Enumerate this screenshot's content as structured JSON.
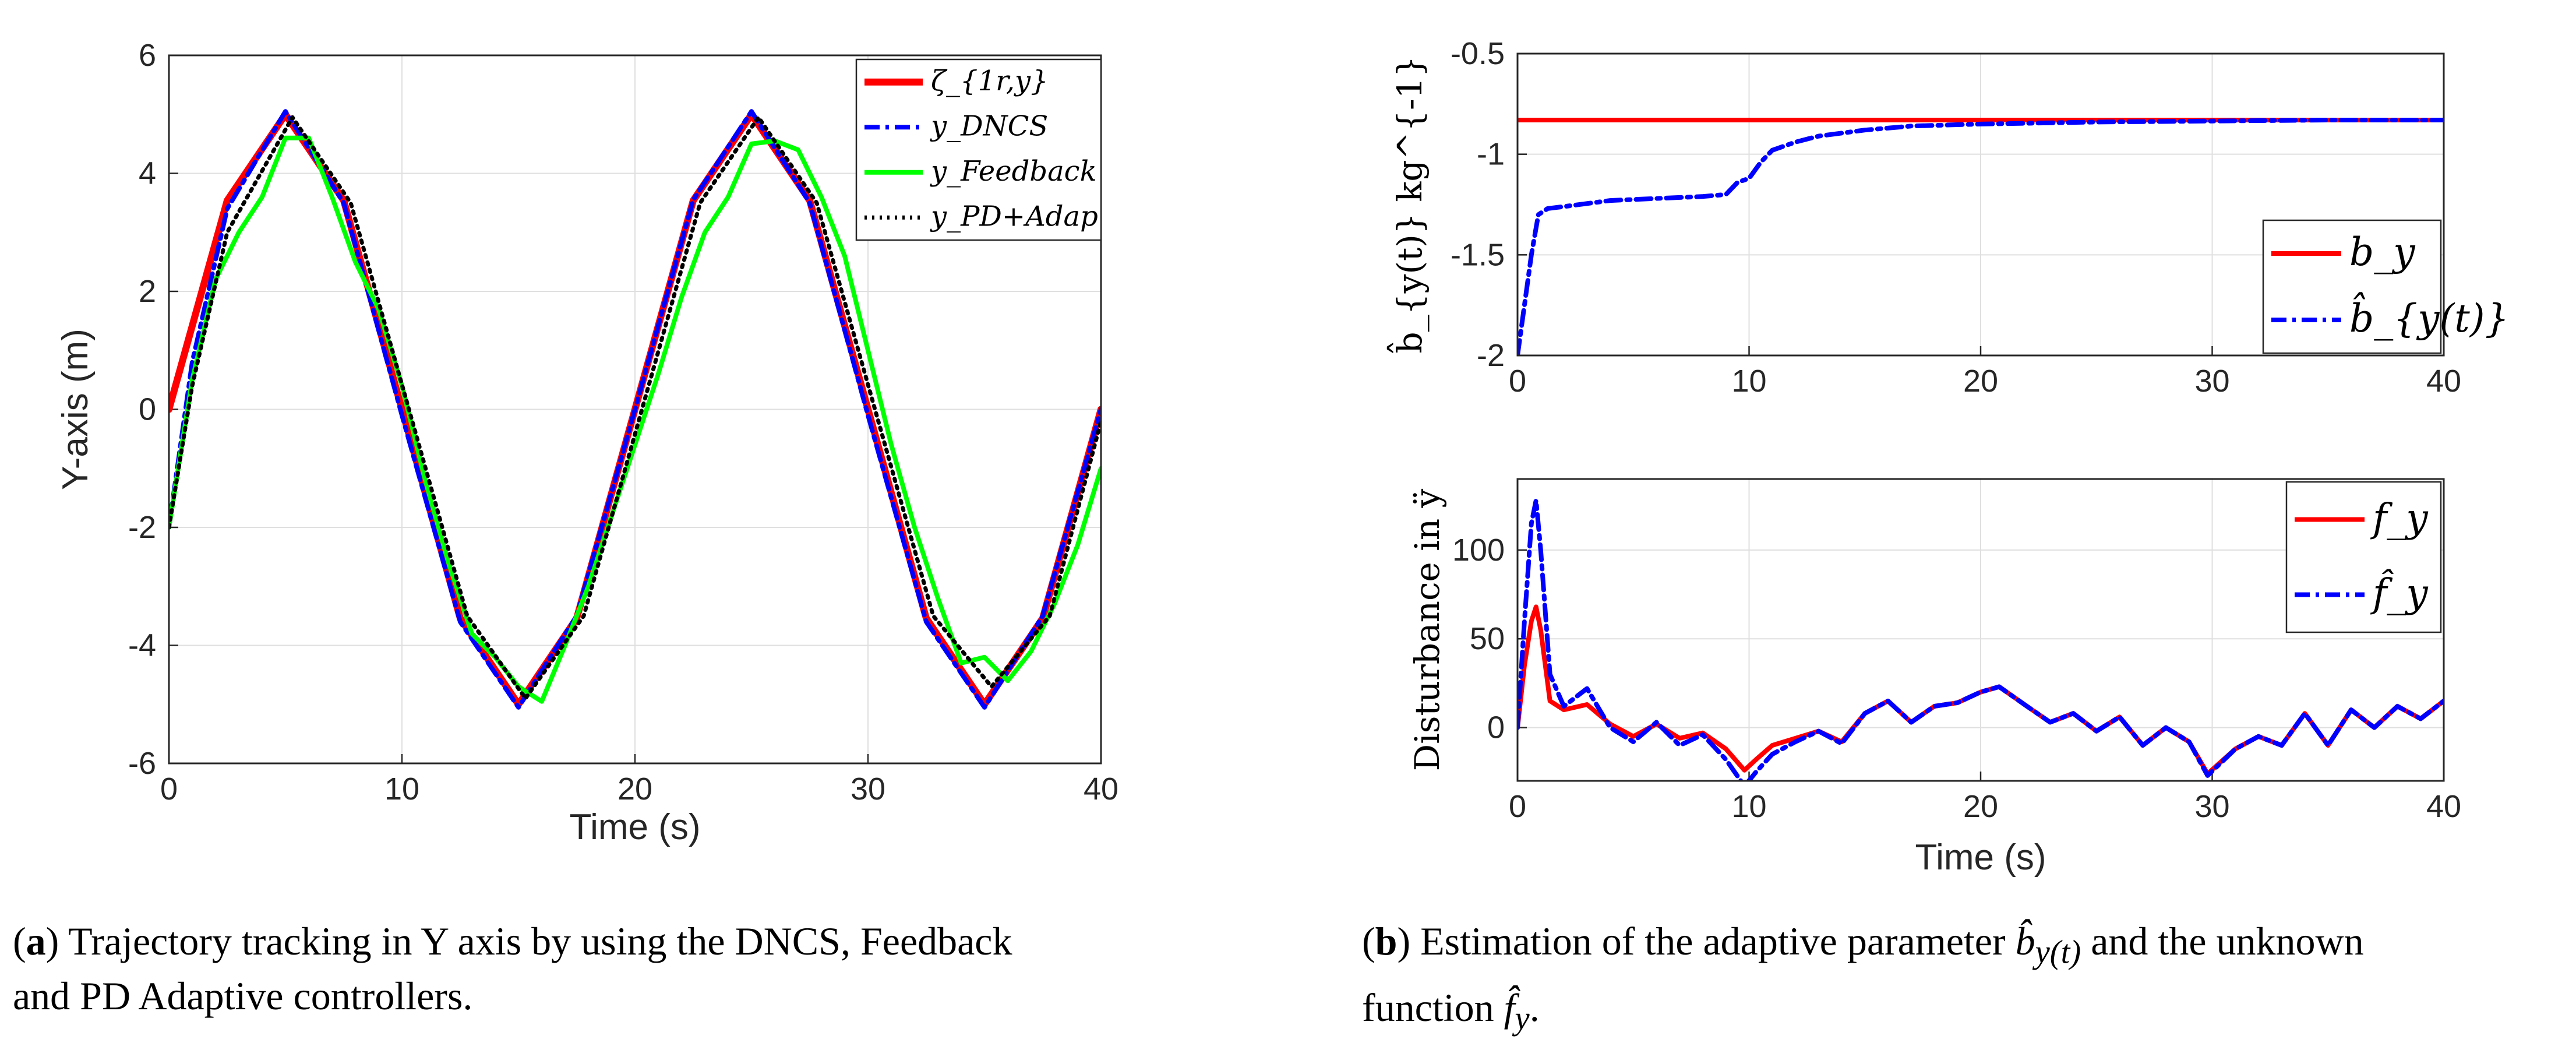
{
  "chart_data": [
    {
      "type": "line",
      "panel": "a",
      "xlabel": "Time (s)",
      "ylabel": "Y-axis (m)",
      "xlim": [
        0,
        40
      ],
      "ylim": [
        -6,
        6
      ],
      "xticks": [
        "0",
        "10",
        "20",
        "30",
        "40"
      ],
      "yticks": [
        "-6",
        "-4",
        "-2",
        "0",
        "2",
        "4",
        "6"
      ],
      "grid": true,
      "legend_position": "top-right",
      "series": [
        {
          "name": "ζ_{1r,y}",
          "color": "#ff0000",
          "style": "solid-thick",
          "x": [
            0,
            2.5,
            5,
            7.5,
            10,
            12.5,
            15,
            17.5,
            20,
            22.5,
            25,
            27.5,
            30,
            32.5,
            35,
            37.5,
            40
          ],
          "y": [
            0,
            3.54,
            5,
            3.54,
            0,
            -3.54,
            -5,
            -3.54,
            0,
            3.54,
            5,
            3.54,
            0,
            -3.54,
            -5,
            -3.54,
            0
          ]
        },
        {
          "name": "y_DNCS",
          "color": "#0000ff",
          "style": "dashdot",
          "x": [
            0,
            1,
            2.5,
            5,
            7.5,
            10,
            12.5,
            15,
            17.5,
            20,
            22.5,
            25,
            27.5,
            30,
            32.5,
            35,
            37.5,
            40
          ],
          "y": [
            -2,
            0.8,
            3.4,
            5.05,
            3.5,
            -0.1,
            -3.6,
            -5.05,
            -3.5,
            0,
            3.55,
            5.05,
            3.5,
            -0.1,
            -3.6,
            -5.05,
            -3.5,
            0
          ]
        },
        {
          "name": "y_Feedback",
          "color": "#00ff00",
          "style": "solid",
          "x": [
            0,
            1,
            2,
            3,
            4,
            5,
            6,
            7,
            8,
            9,
            10,
            11,
            12,
            13,
            14,
            15,
            16,
            17,
            18,
            19,
            20,
            21,
            22,
            23,
            24,
            25,
            26,
            27,
            28,
            29,
            30,
            31,
            32,
            33,
            34,
            35,
            36,
            37,
            38,
            39,
            40
          ],
          "y": [
            -2,
            0.5,
            2.2,
            3.0,
            3.6,
            4.6,
            4.6,
            3.6,
            2.5,
            1.7,
            0.4,
            -1.2,
            -2.6,
            -3.8,
            -4.2,
            -4.7,
            -4.95,
            -4.0,
            -3.0,
            -1.8,
            -0.6,
            0.6,
            1.9,
            3.0,
            3.6,
            4.5,
            4.55,
            4.4,
            3.6,
            2.6,
            1.0,
            -0.6,
            -2.0,
            -3.2,
            -4.3,
            -4.2,
            -4.6,
            -4.1,
            -3.3,
            -2.3,
            -1.0
          ]
        },
        {
          "name": "y_PD+Adap",
          "color": "#000000",
          "style": "dotted",
          "x": [
            0,
            1,
            2.5,
            5.3,
            7.8,
            10.3,
            12.8,
            15.3,
            17.8,
            20.3,
            22.8,
            25.3,
            27.8,
            30.3,
            32.8,
            35.3,
            37.8,
            40
          ],
          "y": [
            -2,
            0.4,
            3.0,
            4.95,
            3.5,
            0,
            -3.5,
            -4.9,
            -3.5,
            0,
            3.5,
            4.95,
            3.5,
            0,
            -3.5,
            -4.7,
            -3.5,
            -0.2
          ]
        }
      ]
    },
    {
      "type": "line",
      "panel": "b-top",
      "xlabel": "",
      "ylabel": "b̂_{y(t)}  kg^{-1}",
      "xlim": [
        0,
        40
      ],
      "ylim": [
        -2,
        -0.5
      ],
      "xticks": [
        "0",
        "10",
        "20",
        "30",
        "40"
      ],
      "yticks": [
        "-0.5",
        "-1",
        "-1.5",
        "-2"
      ],
      "grid": true,
      "legend_position": "bottom-right",
      "series": [
        {
          "name": "b_y",
          "color": "#ff0000",
          "style": "solid",
          "x": [
            0,
            40
          ],
          "y": [
            -0.83,
            -0.83
          ]
        },
        {
          "name": "b̂_{y(t)}",
          "color": "#0000ff",
          "style": "dashdot",
          "x": [
            0,
            0.3,
            0.6,
            0.9,
            1.3,
            2,
            4,
            6,
            8,
            9,
            9.5,
            10,
            10.5,
            11,
            12,
            13,
            15,
            17,
            20,
            25,
            30,
            35,
            40
          ],
          "y": [
            -2,
            -1.75,
            -1.5,
            -1.3,
            -1.27,
            -1.26,
            -1.23,
            -1.22,
            -1.21,
            -1.2,
            -1.14,
            -1.12,
            -1.04,
            -0.98,
            -0.94,
            -0.91,
            -0.88,
            -0.86,
            -0.85,
            -0.84,
            -0.835,
            -0.83,
            -0.83
          ]
        }
      ]
    },
    {
      "type": "line",
      "panel": "b-bottom",
      "xlabel": "Time (s)",
      "ylabel": "Disturbance in ÿ",
      "xlim": [
        0,
        40
      ],
      "ylim": [
        -30,
        140
      ],
      "xticks": [
        "0",
        "10",
        "20",
        "30",
        "40"
      ],
      "yticks": [
        "0",
        "50",
        "100"
      ],
      "grid": true,
      "legend_position": "top-right",
      "series": [
        {
          "name": "f_y",
          "color": "#ff0000",
          "style": "solid",
          "x": [
            0,
            0.3,
            0.6,
            0.8,
            1.0,
            1.4,
            2,
            3,
            4,
            5,
            6,
            7,
            8,
            9,
            9.8,
            10.3,
            11,
            12,
            13,
            14,
            15,
            16,
            17,
            18,
            19,
            20,
            20.8,
            22,
            23,
            24,
            25,
            26,
            27,
            28,
            29,
            29.8,
            31,
            32,
            33,
            34,
            35,
            36,
            37,
            38,
            39,
            40
          ],
          "y": [
            0,
            35,
            60,
            68,
            55,
            15,
            10,
            13,
            2,
            -5,
            2,
            -6,
            -3,
            -12,
            -24,
            -18,
            -10,
            -6,
            -2,
            -8,
            8,
            15,
            3,
            12,
            14,
            20,
            23,
            12,
            3,
            8,
            -2,
            6,
            -10,
            0,
            -8,
            -26,
            -12,
            -5,
            -10,
            8,
            -10,
            10,
            0,
            12,
            5,
            15
          ]
        },
        {
          "name": "f̂_y",
          "color": "#0000ff",
          "style": "dashdot",
          "x": [
            0,
            0.3,
            0.6,
            0.8,
            1.0,
            1.4,
            2,
            3,
            4,
            5,
            6,
            7,
            8,
            9,
            9.8,
            10.3,
            11,
            12,
            13,
            14,
            15,
            16,
            17,
            18,
            19,
            20,
            20.8,
            22,
            23,
            24,
            25,
            26,
            27,
            28,
            29,
            29.8,
            31,
            32,
            33,
            34,
            35,
            36,
            37,
            38,
            39,
            40
          ],
          "y": [
            0,
            60,
            115,
            128,
            100,
            30,
            12,
            22,
            0,
            -8,
            3,
            -10,
            -4,
            -18,
            -33,
            -25,
            -15,
            -8,
            -2,
            -9,
            8,
            15,
            3,
            12,
            14,
            20,
            23,
            12,
            3,
            8,
            -2,
            6,
            -10,
            0,
            -8,
            -27,
            -12,
            -5,
            -10,
            8,
            -10,
            10,
            0,
            12,
            5,
            15
          ]
        }
      ]
    }
  ],
  "captions": {
    "a_label": "a",
    "a_text": ") Trajectory tracking in Y axis by using the DNCS, Feedback",
    "a_text2": "and PD Adaptive controllers.",
    "b_label": "b",
    "b_text_pre": ") Estimation of the adaptive parameter ",
    "b_sym1": "b̂",
    "b_sym1_sub": "y(t)",
    "b_text_mid": " and the unknown",
    "b_text2_pre": "function ",
    "b_sym2": "f̂",
    "b_sym2_sub": "y",
    "b_text2_post": "."
  }
}
